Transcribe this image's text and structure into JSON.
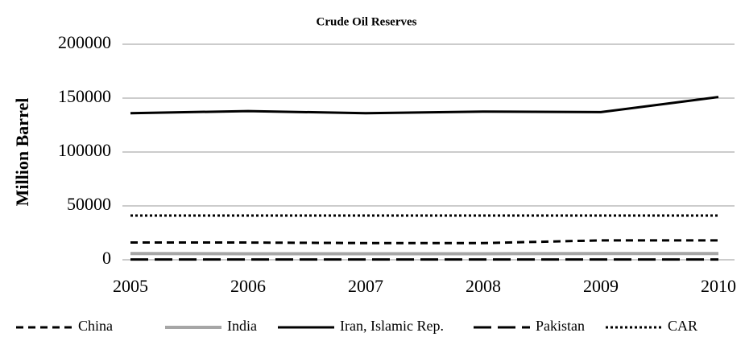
{
  "chart_data": {
    "type": "line",
    "title": "Crude Oil Reserves",
    "y_label": "Million Barrel",
    "categories": [
      "2005",
      "2006",
      "2007",
      "2008",
      "2009",
      "2010"
    ],
    "series": [
      {
        "name": "China",
        "color": "#000000",
        "line_style": "short-dash",
        "values": [
          16000,
          16000,
          15500,
          15500,
          18000,
          18000
        ]
      },
      {
        "name": "India",
        "color": "#a6a6a6",
        "line_style": "solid",
        "values": [
          5800,
          5600,
          5600,
          5600,
          5800,
          5800
        ]
      },
      {
        "name": "Iran, Islamic Rep.",
        "color": "#000000",
        "line_style": "solid",
        "values": [
          136000,
          138000,
          136000,
          137500,
          137000,
          151000
        ]
      },
      {
        "name": "Pakistan",
        "color": "#000000",
        "line_style": "long-dash",
        "values": [
          300,
          300,
          300,
          300,
          300,
          300
        ]
      },
      {
        "name": "CAR",
        "color": "#000000",
        "line_style": "dot",
        "values": [
          41000,
          41000,
          41000,
          41000,
          41000,
          41000
        ]
      }
    ],
    "ylim": [
      0,
      200000
    ],
    "yticks": [
      0,
      50000,
      100000,
      150000,
      200000
    ],
    "grid": true,
    "legend": "bottom"
  }
}
